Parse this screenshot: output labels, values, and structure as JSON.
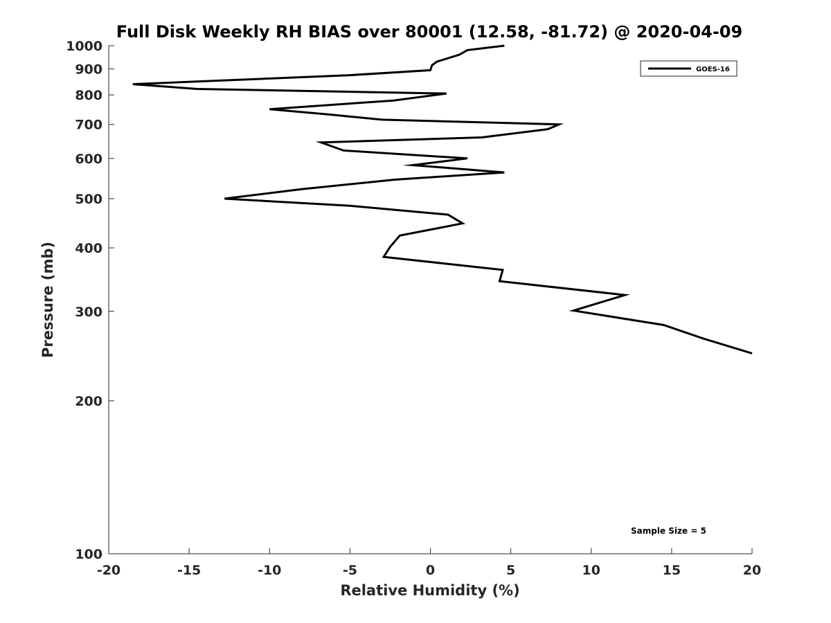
{
  "chart_data": {
    "type": "line",
    "title": "Full Disk Weekly RH BIAS over 80001 (12.58, -81.72) @ 2020-04-09",
    "xlabel": "Relative Humidity (%)",
    "ylabel": "Pressure (mb)",
    "xlim": [
      -20,
      20
    ],
    "ylim": [
      1000,
      100
    ],
    "yscale": "log",
    "xticks": [
      -20,
      -15,
      -10,
      -5,
      0,
      5,
      10,
      15,
      20
    ],
    "xtick_labels": [
      "-20",
      "-15",
      "-10",
      "-5",
      "0",
      "5",
      "10",
      "15",
      "20"
    ],
    "yticks": [
      100,
      200,
      300,
      400,
      500,
      600,
      700,
      800,
      900,
      1000
    ],
    "ytick_labels": [
      "100",
      "200",
      "300",
      "400",
      "500",
      "600",
      "700",
      "800",
      "900",
      "1000"
    ],
    "legend": {
      "position": "top-right",
      "entries": [
        "GOES-16"
      ]
    },
    "annotation": "Sample Size = 5",
    "series": [
      {
        "name": "GOES-16",
        "color": "#000000",
        "points": [
          {
            "x": 4.6,
            "p": 1000
          },
          {
            "x": 2.3,
            "p": 980
          },
          {
            "x": 1.8,
            "p": 960
          },
          {
            "x": 0.4,
            "p": 930
          },
          {
            "x": 0.1,
            "p": 915
          },
          {
            "x": 0.0,
            "p": 895
          },
          {
            "x": -5.0,
            "p": 875
          },
          {
            "x": -18.5,
            "p": 840
          },
          {
            "x": -14.5,
            "p": 822
          },
          {
            "x": 1.0,
            "p": 805
          },
          {
            "x": -2.3,
            "p": 780
          },
          {
            "x": -10.0,
            "p": 750
          },
          {
            "x": -6.3,
            "p": 732
          },
          {
            "x": -3.0,
            "p": 715
          },
          {
            "x": 8.0,
            "p": 700
          },
          {
            "x": 7.3,
            "p": 685
          },
          {
            "x": 3.2,
            "p": 660
          },
          {
            "x": -6.8,
            "p": 645
          },
          {
            "x": -5.4,
            "p": 622
          },
          {
            "x": 2.3,
            "p": 600
          },
          {
            "x": -1.1,
            "p": 582
          },
          {
            "x": 4.6,
            "p": 563
          },
          {
            "x": -2.2,
            "p": 545
          },
          {
            "x": -8.0,
            "p": 522
          },
          {
            "x": -12.8,
            "p": 500
          },
          {
            "x": -5.0,
            "p": 484
          },
          {
            "x": 1.1,
            "p": 465
          },
          {
            "x": 2.0,
            "p": 447
          },
          {
            "x": -1.9,
            "p": 423
          },
          {
            "x": -2.5,
            "p": 402
          },
          {
            "x": -2.9,
            "p": 384
          },
          {
            "x": 4.5,
            "p": 362
          },
          {
            "x": 4.3,
            "p": 344
          },
          {
            "x": 12.1,
            "p": 323
          },
          {
            "x": 8.9,
            "p": 301
          },
          {
            "x": 14.5,
            "p": 282
          },
          {
            "x": 17.0,
            "p": 265
          },
          {
            "x": 20.0,
            "p": 248
          }
        ]
      }
    ]
  }
}
